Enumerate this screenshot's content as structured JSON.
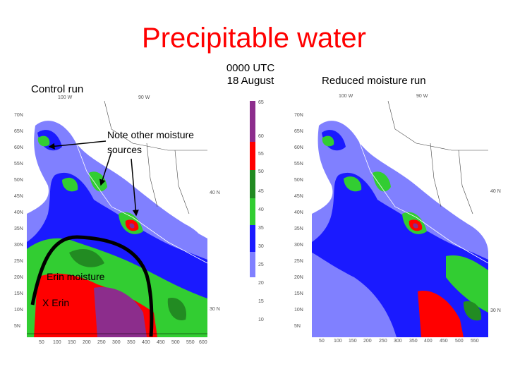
{
  "title": "Precipitable water",
  "timestamp": "0000 UTC\n18 August",
  "left_panel": {
    "label": "Control run",
    "top_ticks": [
      "100 W",
      "90 W"
    ],
    "left_ticks": [
      "70N",
      "65N",
      "60N",
      "55N",
      "50N",
      "45N",
      "40N",
      "35N",
      "30N",
      "25N",
      "20N",
      "15N",
      "10N",
      "5N"
    ],
    "bottom_ticks": [
      "50",
      "100",
      "150",
      "200",
      "250",
      "300",
      "350",
      "400",
      "450",
      "500",
      "550",
      "600"
    ],
    "right_ticks": [
      "40 N",
      "30 N"
    ]
  },
  "right_panel": {
    "label": "Reduced moisture run",
    "top_ticks": [
      "100 W",
      "90 W"
    ],
    "left_ticks": [
      "70N",
      "65N",
      "60N",
      "55N",
      "50N",
      "45N",
      "40N",
      "35N",
      "30N",
      "25N",
      "20N",
      "15N",
      "10N",
      "5N"
    ],
    "bottom_ticks": [
      "50",
      "100",
      "150",
      "200",
      "250",
      "300",
      "350",
      "400",
      "450",
      "500",
      "550"
    ],
    "right_ticks": [
      "40 N",
      "30 N"
    ]
  },
  "colorbar": {
    "labels": [
      "65",
      "60",
      "55",
      "50",
      "45",
      "40",
      "35",
      "30",
      "25",
      "20",
      "15",
      "10"
    ],
    "colors": [
      "#8c2d8c",
      "#ff0000",
      "#228b22",
      "#32cd32",
      "#1a1aff",
      "#8080ff"
    ]
  },
  "annotations": {
    "note": "Note other moisture\nsources",
    "erin_moisture": "Erin moisture",
    "erin_x": "X Erin"
  }
}
